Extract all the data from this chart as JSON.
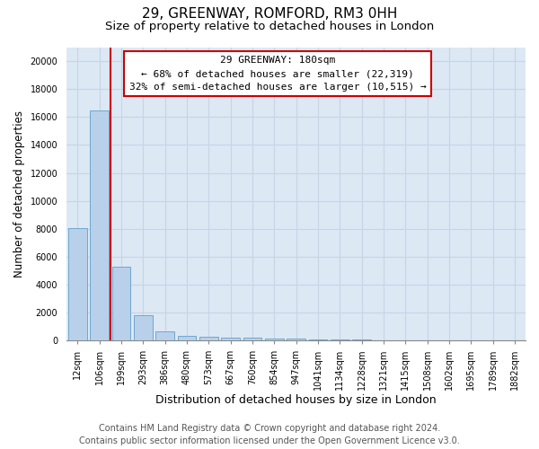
{
  "title_line1": "29, GREENWAY, ROMFORD, RM3 0HH",
  "title_line2": "Size of property relative to detached houses in London",
  "xlabel": "Distribution of detached houses by size in London",
  "ylabel": "Number of detached properties",
  "categories": [
    "12sqm",
    "106sqm",
    "199sqm",
    "293sqm",
    "386sqm",
    "480sqm",
    "573sqm",
    "667sqm",
    "760sqm",
    "854sqm",
    "947sqm",
    "1041sqm",
    "1134sqm",
    "1228sqm",
    "1321sqm",
    "1415sqm",
    "1508sqm",
    "1602sqm",
    "1695sqm",
    "1789sqm",
    "1882sqm"
  ],
  "values": [
    8050,
    16500,
    5300,
    1850,
    700,
    370,
    280,
    230,
    200,
    175,
    140,
    110,
    85,
    65,
    50,
    40,
    30,
    22,
    16,
    12,
    8
  ],
  "bar_color": "#b8d0ea",
  "bar_edge_color": "#6fa8d0",
  "grid_color": "#c8d4e4",
  "background_color": "#dce8f4",
  "vline_color": "#cc0000",
  "vline_x": 1.5,
  "annotation_line1": "29 GREENWAY: 180sqm",
  "annotation_line2": "← 68% of detached houses are smaller (22,319)",
  "annotation_line3": "32% of semi-detached houses are larger (10,515) →",
  "annotation_box_facecolor": "#ffffff",
  "annotation_box_edgecolor": "#cc0000",
  "ylim": [
    0,
    21000
  ],
  "yticks": [
    0,
    2000,
    4000,
    6000,
    8000,
    10000,
    12000,
    14000,
    16000,
    18000,
    20000
  ],
  "footer_line1": "Contains HM Land Registry data © Crown copyright and database right 2024.",
  "footer_line2": "Contains public sector information licensed under the Open Government Licence v3.0.",
  "title_fontsize": 11,
  "subtitle_fontsize": 9.5,
  "xlabel_fontsize": 9,
  "ylabel_fontsize": 8.5,
  "tick_fontsize": 7,
  "annotation_fontsize": 8,
  "footer_fontsize": 7
}
